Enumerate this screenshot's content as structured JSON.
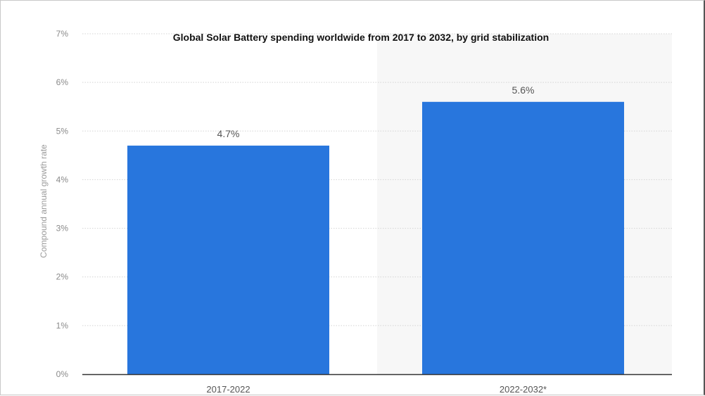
{
  "chart_data": {
    "type": "bar",
    "title": "Global Solar Battery spending worldwide from 2017 to 2032, by grid stabilization",
    "xlabel": "",
    "ylabel": "Compound annual growth rate",
    "categories": [
      "2017-2022",
      "2022-2032*"
    ],
    "values": [
      4.7,
      5.6
    ],
    "data_labels": [
      "4.7%",
      "5.6%"
    ],
    "ylim": [
      0,
      7
    ],
    "yticks": [
      0,
      1,
      2,
      3,
      4,
      5,
      6,
      7
    ],
    "ytick_labels": [
      "0%",
      "1%",
      "2%",
      "3%",
      "4%",
      "5%",
      "6%",
      "7%"
    ],
    "grid": true,
    "colors": {
      "bar": "#2876dd",
      "grid": "#d4d4d4",
      "axis": "#333333",
      "forecast_band": "#f7f7f7"
    }
  }
}
